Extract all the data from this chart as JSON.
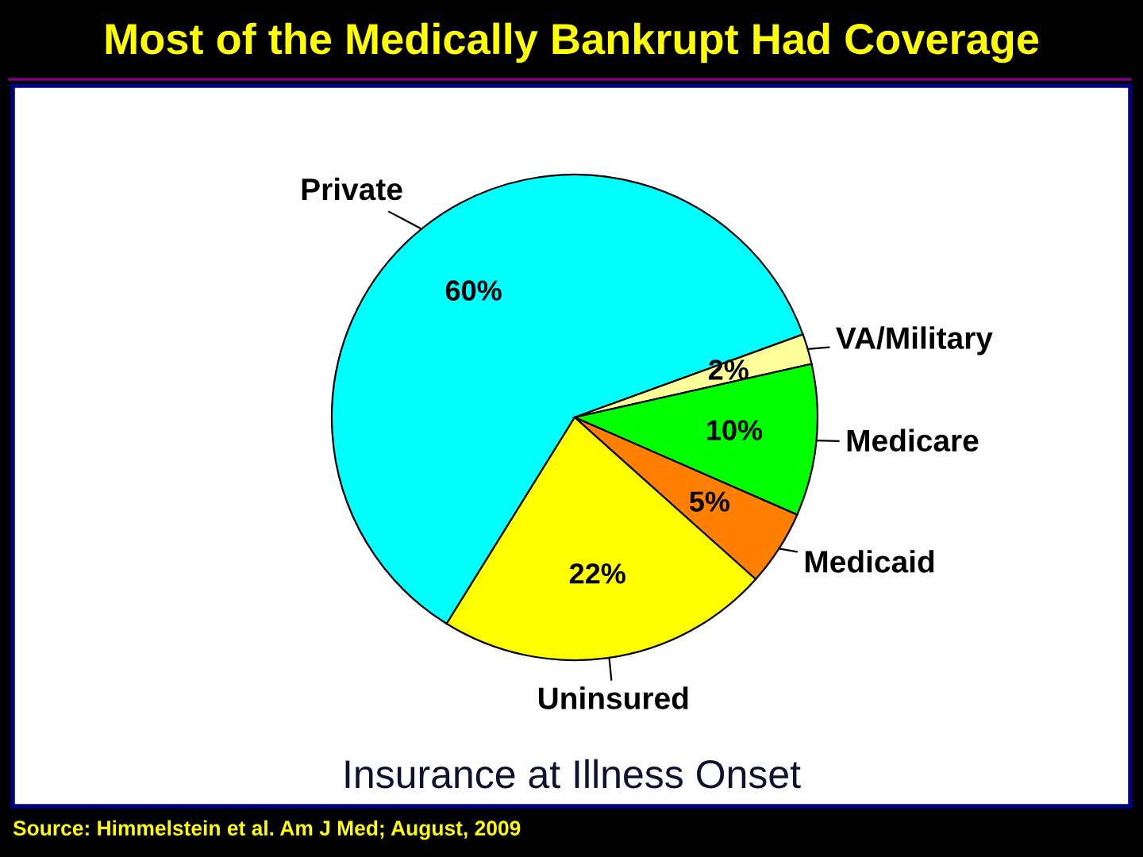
{
  "chart_data": {
    "type": "pie",
    "title": "Most of the Medically Bankrupt Had Coverage",
    "subtitle": "Insurance at Illness Onset",
    "annotations": [
      "Source: Himmelstein et al. Am J Med; August, 2009"
    ],
    "categories": [
      "Private",
      "VA/Military",
      "Medicare",
      "Medicaid",
      "Uninsured"
    ],
    "values": [
      60,
      2,
      10,
      5,
      22
    ],
    "colors": [
      "#00ffff",
      "#ffff99",
      "#00ff00",
      "#ff8000",
      "#ffff00"
    ],
    "value_labels": [
      "60%",
      "2%",
      "10%",
      "5%",
      "22%"
    ]
  }
}
